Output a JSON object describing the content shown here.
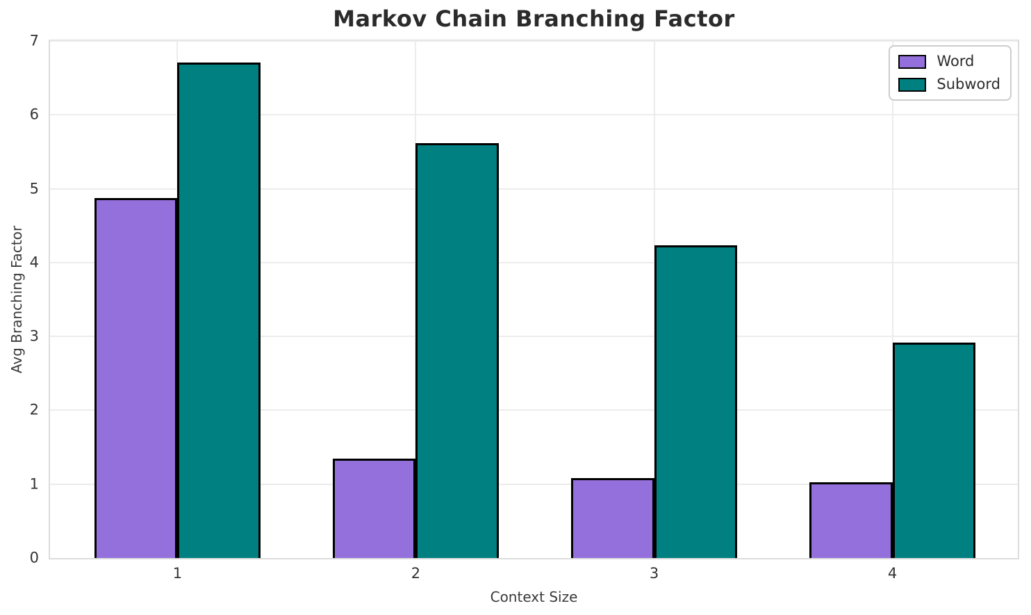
{
  "chart_data": {
    "type": "bar",
    "title": "Markov Chain Branching Factor",
    "xlabel": "Context Size",
    "ylabel": "Avg Branching Factor",
    "categories": [
      "1",
      "2",
      "3",
      "4"
    ],
    "series": [
      {
        "name": "Word",
        "color": "#9370db",
        "values": [
          4.87,
          1.35,
          1.08,
          1.03
        ]
      },
      {
        "name": "Subword",
        "color": "#008080",
        "values": [
          6.71,
          5.62,
          4.23,
          2.92
        ]
      }
    ],
    "ylim": [
      0,
      7
    ],
    "yticks": [
      0,
      1,
      2,
      3,
      4,
      5,
      6,
      7
    ],
    "grid": true,
    "grid_color": "#ececec",
    "spine_color": "#dcdcdc",
    "bar_edge_color": "#000000",
    "legend_position": "upper right",
    "legend_entries": [
      "Word",
      "Subword"
    ],
    "title_color": "#2b2b2b",
    "tick_color": "#333333",
    "background_color": "#ffffff"
  }
}
